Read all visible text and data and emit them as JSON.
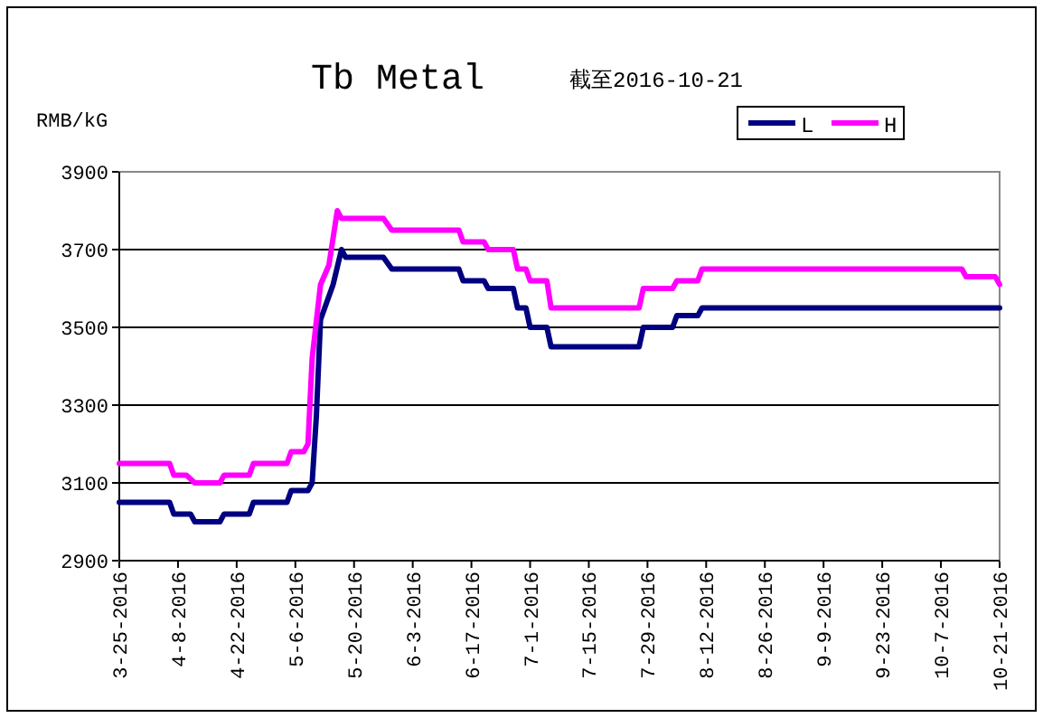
{
  "chart_data": {
    "type": "line",
    "title": "Tb Metal",
    "subtitle": "截至2016-10-21",
    "ylabel": "RMB/kG",
    "xlim": [
      "2016-03-25",
      "2016-10-21"
    ],
    "xticks": [
      {
        "value": "2016-03-25",
        "label": "3-25-2016"
      },
      {
        "value": "2016-04-08",
        "label": "4-8-2016"
      },
      {
        "value": "2016-04-22",
        "label": "4-22-2016"
      },
      {
        "value": "2016-05-06",
        "label": "5-6-2016"
      },
      {
        "value": "2016-05-20",
        "label": "5-20-2016"
      },
      {
        "value": "2016-06-03",
        "label": "6-3-2016"
      },
      {
        "value": "2016-06-17",
        "label": "6-17-2016"
      },
      {
        "value": "2016-07-01",
        "label": "7-1-2016"
      },
      {
        "value": "2016-07-15",
        "label": "7-15-2016"
      },
      {
        "value": "2016-07-29",
        "label": "7-29-2016"
      },
      {
        "value": "2016-08-12",
        "label": "8-12-2016"
      },
      {
        "value": "2016-08-26",
        "label": "8-26-2016"
      },
      {
        "value": "2016-09-09",
        "label": "9-9-2016"
      },
      {
        "value": "2016-09-23",
        "label": "9-23-2016"
      },
      {
        "value": "2016-10-07",
        "label": "10-7-2016"
      },
      {
        "value": "2016-10-21",
        "label": "10-21-2016"
      }
    ],
    "ylim": [
      2900,
      3900
    ],
    "yticks": [
      2900,
      3100,
      3300,
      3500,
      3700,
      3900
    ],
    "grid": "y",
    "legend": "top right",
    "marker": "none",
    "line_style": "solid",
    "series": [
      {
        "name": "L",
        "color": "#000080",
        "x": [
          "2016-03-25",
          "2016-04-06",
          "2016-04-07",
          "2016-04-11",
          "2016-04-12",
          "2016-04-18",
          "2016-04-19",
          "2016-04-25",
          "2016-04-26",
          "2016-05-04",
          "2016-05-05",
          "2016-05-09",
          "2016-05-10",
          "2016-05-11",
          "2016-05-12",
          "2016-05-15",
          "2016-05-17",
          "2016-05-18",
          "2016-05-27",
          "2016-05-29",
          "2016-06-14",
          "2016-06-15",
          "2016-06-20",
          "2016-06-21",
          "2016-06-27",
          "2016-06-28",
          "2016-06-30",
          "2016-07-01",
          "2016-07-05",
          "2016-07-06",
          "2016-07-27",
          "2016-07-28",
          "2016-08-04",
          "2016-08-05",
          "2016-08-10",
          "2016-08-11",
          "2016-10-21"
        ],
        "values": [
          3050,
          3050,
          3020,
          3020,
          3000,
          3000,
          3020,
          3020,
          3050,
          3050,
          3080,
          3080,
          3100,
          3270,
          3520,
          3610,
          3700,
          3680,
          3680,
          3650,
          3650,
          3620,
          3620,
          3600,
          3600,
          3550,
          3550,
          3500,
          3500,
          3450,
          3450,
          3500,
          3500,
          3530,
          3530,
          3550,
          3550
        ]
      },
      {
        "name": "H",
        "color": "#ff00ff",
        "x": [
          "2016-03-25",
          "2016-04-06",
          "2016-04-07",
          "2016-04-10",
          "2016-04-12",
          "2016-04-18",
          "2016-04-19",
          "2016-04-25",
          "2016-04-26",
          "2016-05-04",
          "2016-05-05",
          "2016-05-08",
          "2016-05-09",
          "2016-05-10",
          "2016-05-12",
          "2016-05-14",
          "2016-05-16",
          "2016-05-17",
          "2016-05-27",
          "2016-05-29",
          "2016-06-14",
          "2016-06-15",
          "2016-06-20",
          "2016-06-21",
          "2016-06-27",
          "2016-06-28",
          "2016-06-30",
          "2016-07-01",
          "2016-07-05",
          "2016-07-06",
          "2016-07-27",
          "2016-07-28",
          "2016-08-04",
          "2016-08-05",
          "2016-08-10",
          "2016-08-11",
          "2016-10-12",
          "2016-10-13",
          "2016-10-20",
          "2016-10-21"
        ],
        "values": [
          3150,
          3150,
          3120,
          3120,
          3100,
          3100,
          3120,
          3120,
          3150,
          3150,
          3180,
          3180,
          3200,
          3420,
          3610,
          3660,
          3800,
          3780,
          3780,
          3750,
          3750,
          3720,
          3720,
          3700,
          3700,
          3650,
          3650,
          3620,
          3620,
          3550,
          3550,
          3600,
          3600,
          3620,
          3620,
          3650,
          3650,
          3630,
          3630,
          3610
        ]
      }
    ]
  }
}
